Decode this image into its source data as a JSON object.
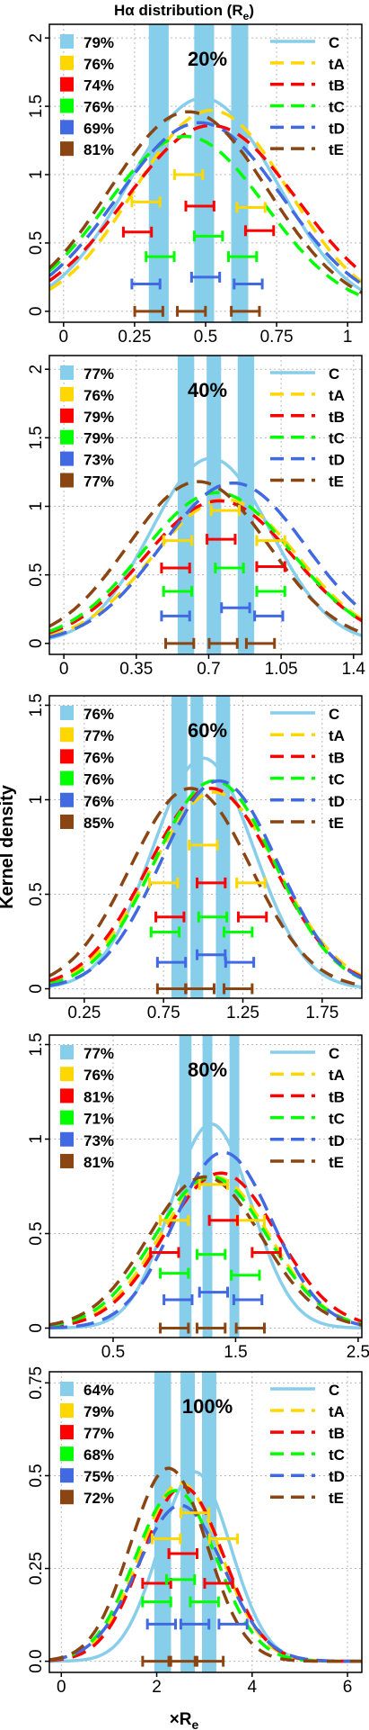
{
  "title_main": "Hα distribution (R",
  "title_sub": "e",
  "title_close": ")",
  "ylabel": "Kernel density",
  "xlabel_main": "×R",
  "xlabel_sub": "e",
  "colors": {
    "C": "#87ceeb",
    "tA": "#ffd700",
    "tB": "#ff0000",
    "tC": "#00ff00",
    "tD": "#4169e1",
    "tE": "#8b4513",
    "band": "#87ceeb",
    "grid": "#b8b8b8",
    "axis": "#000000"
  },
  "series_names": [
    "C",
    "tA",
    "tB",
    "tC",
    "tD",
    "tE"
  ],
  "chart_data": [
    {
      "type": "line",
      "title": "20%",
      "xlim": [
        -0.05,
        1.05
      ],
      "ylim": [
        -0.08,
        2.1
      ],
      "xticks": [
        0,
        0.25,
        0.5,
        0.75,
        1
      ],
      "xtick_labels": [
        "0",
        "0.25",
        "0.5",
        "0.75",
        "1"
      ],
      "yticks": [
        0,
        0.5,
        1,
        1.5,
        2
      ],
      "ytick_labels": [
        "0",
        "0.5",
        "1",
        "1.5",
        "2"
      ],
      "percents": [
        "79%",
        "76%",
        "74%",
        "76%",
        "69%",
        "81%"
      ],
      "bands": [
        [
          0.3,
          0.37
        ],
        [
          0.46,
          0.53
        ],
        [
          0.59,
          0.65
        ]
      ],
      "curves": [
        {
          "name": "C",
          "mu": 0.49,
          "sigma": 0.26,
          "peak": 1.56
        },
        {
          "name": "tA",
          "mu": 0.52,
          "sigma": 0.27,
          "peak": 1.47
        },
        {
          "name": "tB",
          "mu": 0.52,
          "sigma": 0.3,
          "peak": 1.36
        },
        {
          "name": "tC",
          "mu": 0.43,
          "sigma": 0.28,
          "peak": 1.28
        },
        {
          "name": "tD",
          "mu": 0.48,
          "sigma": 0.29,
          "peak": 1.38
        },
        {
          "name": "tE",
          "mu": 0.44,
          "sigma": 0.28,
          "peak": 1.46
        }
      ],
      "errorbars": [
        {
          "name": "C",
          "points": []
        },
        {
          "name": "tA",
          "points": [
            [
              0.29,
              0.8
            ],
            [
              0.44,
              1.0
            ],
            [
              0.66,
              0.76
            ]
          ]
        },
        {
          "name": "tB",
          "points": [
            [
              0.26,
              0.58
            ],
            [
              0.48,
              0.77
            ],
            [
              0.69,
              0.59
            ]
          ]
        },
        {
          "name": "tC",
          "points": [
            [
              0.34,
              0.4
            ],
            [
              0.51,
              0.55
            ],
            [
              0.63,
              0.4
            ]
          ]
        },
        {
          "name": "tD",
          "points": [
            [
              0.29,
              0.2
            ],
            [
              0.5,
              0.25
            ],
            [
              0.65,
              0.2
            ]
          ]
        },
        {
          "name": "tE",
          "points": [
            [
              0.3,
              0.0
            ],
            [
              0.45,
              0.0
            ],
            [
              0.64,
              0.0
            ]
          ]
        }
      ]
    },
    {
      "type": "line",
      "title": "40%",
      "xlim": [
        -0.07,
        1.44
      ],
      "ylim": [
        -0.08,
        2.1
      ],
      "xticks": [
        0,
        0.35,
        0.7,
        1.05,
        1.4
      ],
      "xtick_labels": [
        "0",
        "0.35",
        "0.7",
        "1.05",
        "1.4"
      ],
      "yticks": [
        0,
        0.5,
        1,
        1.5,
        2
      ],
      "ytick_labels": [
        "0",
        "0.5",
        "1",
        "1.5",
        "2"
      ],
      "percents": [
        "77%",
        "76%",
        "79%",
        "79%",
        "73%",
        "77%"
      ],
      "bands": [
        [
          0.55,
          0.63
        ],
        [
          0.69,
          0.76
        ],
        [
          0.84,
          0.92
        ]
      ],
      "curves": [
        {
          "name": "C",
          "mu": 0.71,
          "sigma": 0.29,
          "peak": 1.35
        },
        {
          "name": "tA",
          "mu": 0.78,
          "sigma": 0.35,
          "peak": 1.05
        },
        {
          "name": "tB",
          "mu": 0.75,
          "sigma": 0.36,
          "peak": 1.04
        },
        {
          "name": "tC",
          "mu": 0.74,
          "sigma": 0.36,
          "peak": 1.1
        },
        {
          "name": "tD",
          "mu": 0.82,
          "sigma": 0.35,
          "peak": 1.17
        },
        {
          "name": "tE",
          "mu": 0.65,
          "sigma": 0.34,
          "peak": 1.18
        }
      ],
      "errorbars": [
        {
          "name": "C",
          "points": []
        },
        {
          "name": "tA",
          "points": [
            [
              0.55,
              0.75
            ],
            [
              0.78,
              0.97
            ],
            [
              1.0,
              0.75
            ]
          ]
        },
        {
          "name": "tB",
          "points": [
            [
              0.54,
              0.55
            ],
            [
              0.76,
              0.76
            ],
            [
              1.0,
              0.56
            ]
          ]
        },
        {
          "name": "tC",
          "points": [
            [
              0.55,
              0.38
            ],
            [
              0.8,
              0.55
            ],
            [
              1.0,
              0.38
            ]
          ]
        },
        {
          "name": "tD",
          "points": [
            [
              0.54,
              0.2
            ],
            [
              0.83,
              0.26
            ],
            [
              0.99,
              0.2
            ]
          ]
        },
        {
          "name": "tE",
          "points": [
            [
              0.56,
              0.0
            ],
            [
              0.77,
              0.0
            ],
            [
              0.95,
              0.0
            ]
          ]
        }
      ]
    },
    {
      "type": "line",
      "title": "60%",
      "xlim": [
        0.03,
        2.0
      ],
      "ylim": [
        -0.05,
        1.55
      ],
      "xticks": [
        0.25,
        0.75,
        1.25,
        1.75
      ],
      "xtick_labels": [
        "0.25",
        "0.75",
        "1.25",
        "1.75"
      ],
      "yticks": [
        0,
        0.5,
        1,
        1.5
      ],
      "ytick_labels": [
        "0",
        "0.5",
        "1",
        "1.5"
      ],
      "percents": [
        "76%",
        "77%",
        "76%",
        "76%",
        "76%",
        "85%"
      ],
      "bands": [
        [
          0.8,
          0.9
        ],
        [
          0.92,
          1.0
        ],
        [
          1.08,
          1.17
        ]
      ],
      "curves": [
        {
          "name": "C",
          "mu": 1.0,
          "sigma": 0.32,
          "peak": 1.22
        },
        {
          "name": "tA",
          "mu": 1.07,
          "sigma": 0.4,
          "peak": 1.04
        },
        {
          "name": "tB",
          "mu": 1.05,
          "sigma": 0.4,
          "peak": 1.06
        },
        {
          "name": "tC",
          "mu": 1.07,
          "sigma": 0.38,
          "peak": 1.1
        },
        {
          "name": "tD",
          "mu": 1.1,
          "sigma": 0.37,
          "peak": 1.1
        },
        {
          "name": "tE",
          "mu": 0.92,
          "sigma": 0.38,
          "peak": 1.06
        }
      ],
      "errorbars": [
        {
          "name": "C",
          "points": []
        },
        {
          "name": "tA",
          "points": [
            [
              0.75,
              0.56
            ],
            [
              1.0,
              0.76
            ],
            [
              1.3,
              0.56
            ]
          ]
        },
        {
          "name": "tB",
          "points": [
            [
              0.79,
              0.38
            ],
            [
              1.05,
              0.56
            ],
            [
              1.31,
              0.38
            ]
          ]
        },
        {
          "name": "tC",
          "points": [
            [
              0.76,
              0.3
            ],
            [
              1.06,
              0.38
            ],
            [
              1.22,
              0.3
            ]
          ]
        },
        {
          "name": "tD",
          "points": [
            [
              0.8,
              0.14
            ],
            [
              1.05,
              0.18
            ],
            [
              1.23,
              0.14
            ]
          ]
        },
        {
          "name": "tE",
          "points": [
            [
              0.8,
              0.0
            ],
            [
              0.98,
              0.0
            ],
            [
              1.22,
              0.0
            ]
          ]
        }
      ]
    },
    {
      "type": "line",
      "title": "80%",
      "xlim": [
        -0.02,
        2.53
      ],
      "ylim": [
        -0.05,
        1.55
      ],
      "xticks": [
        0.5,
        1.5,
        2.5
      ],
      "xtick_labels": [
        "0.5",
        "1.5",
        "2.5"
      ],
      "yticks": [
        0,
        0.5,
        1,
        1.5
      ],
      "ytick_labels": [
        "0",
        "0.5",
        "1",
        "1.5"
      ],
      "percents": [
        "77%",
        "76%",
        "81%",
        "71%",
        "73%",
        "81%"
      ],
      "bands": [
        [
          1.04,
          1.14
        ],
        [
          1.23,
          1.31
        ],
        [
          1.45,
          1.53
        ]
      ],
      "curves": [
        {
          "name": "C",
          "mu": 1.3,
          "sigma": 0.33,
          "peak": 1.08
        },
        {
          "name": "tA",
          "mu": 1.33,
          "sigma": 0.45,
          "peak": 0.8
        },
        {
          "name": "tB",
          "mu": 1.38,
          "sigma": 0.46,
          "peak": 0.82
        },
        {
          "name": "tC",
          "mu": 1.3,
          "sigma": 0.46,
          "peak": 0.8
        },
        {
          "name": "tD",
          "mu": 1.4,
          "sigma": 0.4,
          "peak": 0.93
        },
        {
          "name": "tE",
          "mu": 1.25,
          "sigma": 0.46,
          "peak": 0.8
        }
      ],
      "errorbars": [
        {
          "name": "C",
          "points": []
        },
        {
          "name": "tA",
          "points": [
            [
              1.0,
              0.57
            ],
            [
              1.32,
              0.76
            ],
            [
              1.62,
              0.57
            ]
          ]
        },
        {
          "name": "tB",
          "points": [
            [
              0.92,
              0.4
            ],
            [
              1.4,
              0.57
            ],
            [
              1.75,
              0.4
            ]
          ]
        },
        {
          "name": "tC",
          "points": [
            [
              1.0,
              0.29
            ],
            [
              1.3,
              0.39
            ],
            [
              1.58,
              0.28
            ]
          ]
        },
        {
          "name": "tD",
          "points": [
            [
              1.03,
              0.15
            ],
            [
              1.32,
              0.19
            ],
            [
              1.6,
              0.15
            ]
          ]
        },
        {
          "name": "tE",
          "points": [
            [
              1.0,
              0.0
            ],
            [
              1.3,
              0.0
            ],
            [
              1.62,
              0.0
            ]
          ]
        }
      ]
    },
    {
      "type": "line",
      "title": "100%",
      "xlim": [
        -0.25,
        6.3
      ],
      "ylim": [
        -0.03,
        0.78
      ],
      "xticks": [
        0,
        2,
        4,
        6
      ],
      "xtick_labels": [
        "0",
        "2",
        "4",
        "6"
      ],
      "yticks": [
        0,
        0.25,
        0.5,
        0.75
      ],
      "ytick_labels": [
        "0.0",
        "0.25",
        "0.5",
        "0.75"
      ],
      "percents": [
        "64%",
        "79%",
        "77%",
        "68%",
        "75%",
        "72%"
      ],
      "bands": [
        [
          1.95,
          2.3
        ],
        [
          2.5,
          2.8
        ],
        [
          2.95,
          3.25
        ]
      ],
      "curves": [
        {
          "name": "C",
          "mu": 2.8,
          "sigma": 0.75,
          "peak": 0.51
        },
        {
          "name": "tA",
          "mu": 2.5,
          "sigma": 0.85,
          "peak": 0.48
        },
        {
          "name": "tB",
          "mu": 2.55,
          "sigma": 0.85,
          "peak": 0.47
        },
        {
          "name": "tC",
          "mu": 2.4,
          "sigma": 0.85,
          "peak": 0.46
        },
        {
          "name": "tD",
          "mu": 2.5,
          "sigma": 0.9,
          "peak": 0.42
        },
        {
          "name": "tE",
          "mu": 2.25,
          "sigma": 0.8,
          "peak": 0.52
        }
      ],
      "errorbars": [
        {
          "name": "C",
          "points": []
        },
        {
          "name": "tA",
          "points": [
            [
              2.2,
              0.33
            ],
            [
              2.8,
              0.4
            ],
            [
              3.4,
              0.33
            ]
          ]
        },
        {
          "name": "tB",
          "points": [
            [
              2.0,
              0.21
            ],
            [
              2.55,
              0.29
            ],
            [
              3.3,
              0.21
            ]
          ]
        },
        {
          "name": "tC",
          "points": [
            [
              2.0,
              0.16
            ],
            [
              2.5,
              0.22
            ],
            [
              3.0,
              0.16
            ]
          ]
        },
        {
          "name": "tD",
          "points": [
            [
              2.1,
              0.1
            ],
            [
              2.8,
              0.1
            ],
            [
              3.6,
              0.1
            ]
          ]
        },
        {
          "name": "tE",
          "points": [
            [
              2.0,
              0.0
            ],
            [
              2.55,
              0.0
            ],
            [
              3.1,
              0.0
            ]
          ]
        }
      ]
    }
  ]
}
